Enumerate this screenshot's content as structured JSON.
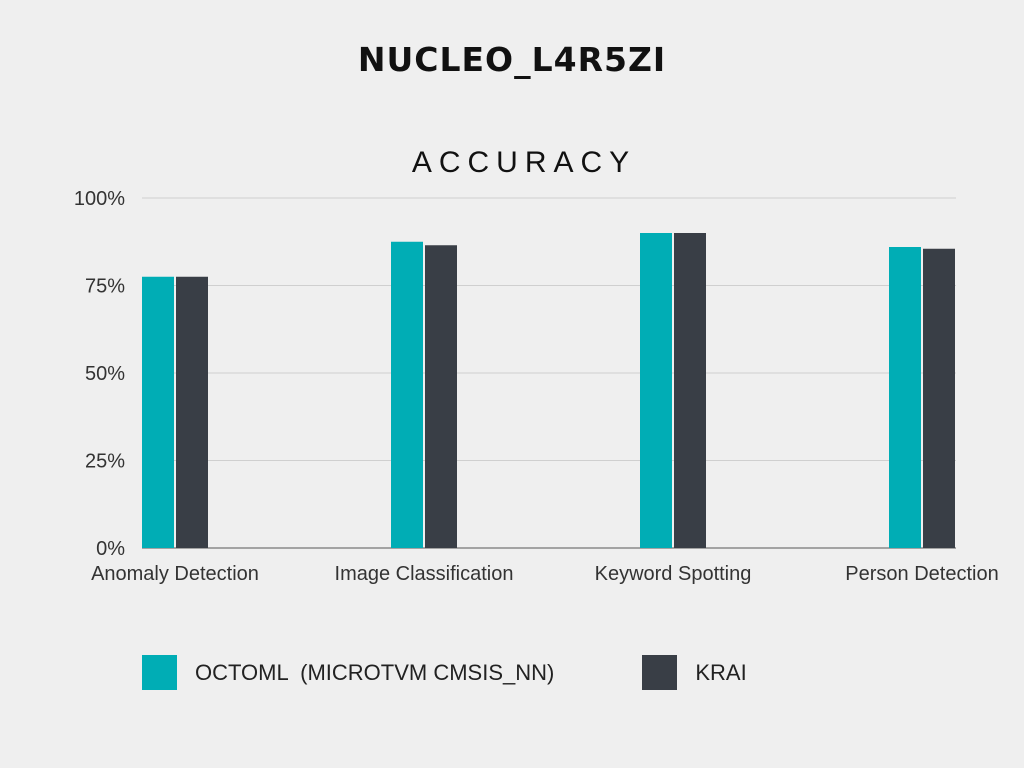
{
  "board_title": "NUCLEO_L4R5ZI",
  "chart_data": {
    "type": "bar",
    "title": "ACCURACY",
    "categories": [
      "Anomaly Detection",
      "Image Classification",
      "Keyword Spotting",
      "Person Detection"
    ],
    "series": [
      {
        "name": "OCTOML  (MICROTVM CMSIS_NN)",
        "color": "#00adb5",
        "values": [
          77.5,
          87.5,
          90.0,
          86.0
        ]
      },
      {
        "name": "KRAI",
        "color": "#393e46",
        "values": [
          77.5,
          86.5,
          90.0,
          85.5
        ]
      }
    ],
    "yticks": [
      "0%",
      "25%",
      "50%",
      "75%",
      "100%"
    ],
    "ylim": [
      0,
      100
    ],
    "grid": true,
    "legend_position": "bottom"
  }
}
